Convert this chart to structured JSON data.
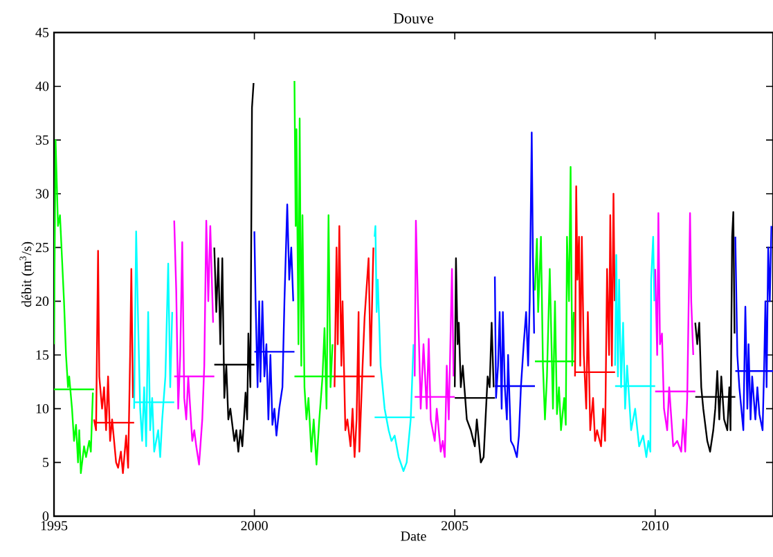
{
  "chart_data": {
    "type": "line",
    "title": "Douve",
    "xlabel": "Date",
    "ylabel": "débit (m$^{3}$/s)",
    "xlim": [
      1995,
      2012.94
    ],
    "ylim": [
      0,
      45
    ],
    "xticks": [
      1995,
      2000,
      2005,
      2010
    ],
    "yticks": [
      0,
      5,
      10,
      15,
      20,
      25,
      30,
      35,
      40,
      45
    ],
    "series": [
      {
        "color": "#00ff00",
        "x": [
          1995.0,
          1995.04,
          1995.1,
          1995.15,
          1995.2,
          1995.25,
          1995.3,
          1995.35,
          1995.38,
          1995.45,
          1995.5,
          1995.55,
          1995.6,
          1995.63,
          1995.67,
          1995.75,
          1995.8,
          1995.88,
          1995.92,
          1995.97
        ],
        "values": [
          16,
          35,
          27,
          28,
          24,
          20,
          15,
          12,
          13,
          10,
          7,
          8.5,
          5,
          8,
          4,
          6.5,
          5.5,
          7,
          6,
          11.5
        ]
      },
      {
        "color": "#00ff00",
        "x": [
          1995,
          1996
        ],
        "values": [
          11.8,
          11.8
        ]
      },
      {
        "color": "#ff0000",
        "x": [
          1996.0,
          1996.05,
          1996.1,
          1996.13,
          1996.2,
          1996.25,
          1996.3,
          1996.35,
          1996.4,
          1996.45,
          1996.55,
          1996.6,
          1996.67,
          1996.72,
          1996.8,
          1996.85,
          1996.9,
          1996.93,
          1996.97
        ],
        "values": [
          9,
          8,
          24.7,
          13,
          10,
          12,
          8,
          13,
          7,
          9,
          5,
          4.5,
          6,
          4,
          7.5,
          4.5,
          15,
          23,
          11
        ]
      },
      {
        "color": "#ff0000",
        "x": [
          1996,
          1997
        ],
        "values": [
          8.7,
          8.7
        ]
      },
      {
        "color": "#00ffff",
        "x": [
          1997.0,
          1997.05,
          1997.1,
          1997.15,
          1997.2,
          1997.25,
          1997.3,
          1997.35,
          1997.4,
          1997.45,
          1997.5,
          1997.6,
          1997.65,
          1997.7,
          1997.78,
          1997.85,
          1997.9,
          1997.95
        ],
        "values": [
          10,
          26.5,
          18,
          10,
          7,
          12,
          6.5,
          19,
          8,
          11,
          6,
          8,
          5.5,
          9,
          13,
          23.5,
          12,
          19
        ]
      },
      {
        "color": "#00ffff",
        "x": [
          1997,
          1998
        ],
        "values": [
          10.6,
          10.6
        ]
      },
      {
        "color": "#ff00ff",
        "x": [
          1998.0,
          1998.05,
          1998.1,
          1998.15,
          1998.2,
          1998.25,
          1998.3,
          1998.35,
          1998.45,
          1998.5,
          1998.55,
          1998.62,
          1998.7,
          1998.75,
          1998.8,
          1998.85,
          1998.9,
          1998.97
        ],
        "values": [
          27.5,
          21,
          10,
          15,
          25.5,
          11,
          9,
          13,
          7,
          8,
          6.5,
          4.8,
          9,
          14,
          27.5,
          20,
          27,
          18
        ]
      },
      {
        "color": "#ff00ff",
        "x": [
          1998,
          1999
        ],
        "values": [
          13.0,
          13.0
        ]
      },
      {
        "color": "#000000",
        "x": [
          1999.0,
          1999.05,
          1999.1,
          1999.15,
          1999.2,
          1999.25,
          1999.3,
          1999.35,
          1999.4,
          1999.5,
          1999.55,
          1999.6,
          1999.65,
          1999.7,
          1999.78,
          1999.82,
          1999.85,
          1999.9,
          1999.94,
          1999.98
        ],
        "values": [
          25,
          19,
          24,
          16,
          24,
          11,
          14,
          9,
          10,
          7,
          8,
          6,
          8,
          6.5,
          11.5,
          9,
          17,
          12,
          38,
          40.3
        ]
      },
      {
        "color": "#000000",
        "x": [
          1999,
          2000
        ],
        "values": [
          14.1,
          14.1
        ]
      },
      {
        "color": "#0000ff",
        "x": [
          2000.0,
          2000.03,
          2000.08,
          2000.12,
          2000.15,
          2000.2,
          2000.25,
          2000.3,
          2000.35,
          2000.4,
          2000.45,
          2000.5,
          2000.55,
          2000.62,
          2000.7,
          2000.75,
          2000.82,
          2000.87,
          2000.92,
          2000.97
        ],
        "values": [
          26.5,
          20,
          12,
          20,
          12.5,
          20,
          13,
          16,
          9,
          15,
          8.5,
          10,
          7.5,
          10,
          12,
          20,
          29,
          22,
          25,
          20
        ]
      },
      {
        "color": "#0000ff",
        "x": [
          2000,
          2001
        ],
        "values": [
          15.3,
          15.3
        ]
      },
      {
        "color": "#00ff00",
        "x": [
          2001.0,
          2001.03,
          2001.05,
          2001.1,
          2001.13,
          2001.17,
          2001.2,
          2001.25,
          2001.3,
          2001.35,
          2001.42,
          2001.48,
          2001.55,
          2001.62,
          2001.7,
          2001.75,
          2001.8,
          2001.85,
          2001.9,
          2001.95
        ],
        "values": [
          40.5,
          27,
          36,
          16,
          37,
          14,
          28,
          12,
          9,
          11,
          6,
          9,
          4.8,
          9,
          13,
          17.5,
          10,
          28,
          12,
          16
        ]
      },
      {
        "color": "#00ff00",
        "x": [
          2001,
          2002
        ],
        "values": [
          13.0,
          13.0
        ]
      },
      {
        "color": "#ff0000",
        "x": [
          2002.0,
          2002.05,
          2002.08,
          2002.12,
          2002.17,
          2002.2,
          2002.27,
          2002.32,
          2002.4,
          2002.45,
          2002.5,
          2002.55,
          2002.6,
          2002.62,
          2002.7,
          2002.75,
          2002.85,
          2002.9,
          2002.97
        ],
        "values": [
          12,
          25,
          16,
          27,
          14,
          20,
          8,
          9,
          6.5,
          10,
          5.5,
          9,
          19,
          6,
          14,
          18.5,
          24,
          14,
          25
        ]
      },
      {
        "color": "#ff0000",
        "x": [
          2002,
          2003
        ],
        "values": [
          13.0,
          13.0
        ]
      },
      {
        "color": "#00ffff",
        "x": [
          2003.0,
          2003.02,
          2003.05,
          2003.08,
          2003.15,
          2003.25,
          2003.35,
          2003.42,
          2003.5,
          2003.6,
          2003.72,
          2003.8,
          2003.85,
          2003.9,
          2003.97
        ],
        "values": [
          26,
          27,
          19,
          22,
          14,
          10,
          8,
          7,
          7.5,
          5.5,
          4.2,
          5,
          7,
          9,
          16
        ]
      },
      {
        "color": "#00ffff",
        "x": [
          2003,
          2004
        ],
        "values": [
          9.2,
          9.2
        ]
      },
      {
        "color": "#ff00ff",
        "x": [
          2004.0,
          2004.03,
          2004.08,
          2004.15,
          2004.22,
          2004.3,
          2004.35,
          2004.4,
          2004.5,
          2004.55,
          2004.65,
          2004.7,
          2004.75,
          2004.8,
          2004.85,
          2004.93,
          2004.97
        ],
        "values": [
          13,
          27.5,
          20,
          10,
          16,
          10,
          16.5,
          9,
          7,
          10,
          6,
          7,
          5.5,
          14,
          9,
          23,
          13
        ]
      },
      {
        "color": "#ff00ff",
        "x": [
          2004,
          2005
        ],
        "values": [
          11.1,
          11.1
        ]
      },
      {
        "color": "#000000",
        "x": [
          2005.0,
          2005.03,
          2005.07,
          2005.1,
          2005.15,
          2005.2,
          2005.3,
          2005.4,
          2005.5,
          2005.55,
          2005.65,
          2005.72,
          2005.78,
          2005.82,
          2005.87,
          2005.92,
          2005.97
        ],
        "values": [
          12,
          24,
          16,
          18,
          12,
          14,
          9,
          8,
          6.5,
          9,
          5,
          5.5,
          10,
          13,
          12,
          18,
          12
        ]
      },
      {
        "color": "#000000",
        "x": [
          2005,
          2006
        ],
        "values": [
          11.0,
          11.0
        ]
      },
      {
        "color": "#0000ff",
        "x": [
          2006.0,
          2006.03,
          2006.08,
          2006.12,
          2006.17,
          2006.2,
          2006.25,
          2006.3,
          2006.33,
          2006.4,
          2006.47,
          2006.55,
          2006.6,
          2006.65,
          2006.72,
          2006.78,
          2006.83,
          2006.87,
          2006.92,
          2006.95,
          2006.98
        ],
        "values": [
          22.3,
          11,
          14,
          19,
          10,
          19,
          12,
          9,
          15,
          7,
          6.5,
          5.5,
          7.5,
          12,
          16,
          19,
          14,
          20,
          35.7,
          24,
          17
        ]
      },
      {
        "color": "#0000ff",
        "x": [
          2006,
          2007
        ],
        "values": [
          12.1,
          12.1
        ]
      },
      {
        "color": "#00ff00",
        "x": [
          2007.0,
          2007.05,
          2007.08,
          2007.15,
          2007.2,
          2007.25,
          2007.3,
          2007.37,
          2007.45,
          2007.5,
          2007.55,
          2007.6,
          2007.65,
          2007.73,
          2007.77,
          2007.8,
          2007.85,
          2007.89,
          2007.93,
          2007.97
        ],
        "values": [
          21,
          25.8,
          19,
          26,
          14,
          9,
          13,
          23,
          10,
          20,
          9.5,
          12,
          8,
          11,
          8.5,
          26,
          20,
          32.5,
          14,
          19
        ]
      },
      {
        "color": "#00ff00",
        "x": [
          2007,
          2008
        ],
        "values": [
          14.4,
          14.4
        ]
      },
      {
        "color": "#ff0000",
        "x": [
          2008.0,
          2008.03,
          2008.06,
          2008.1,
          2008.13,
          2008.17,
          2008.22,
          2008.28,
          2008.32,
          2008.38,
          2008.45,
          2008.5,
          2008.55,
          2008.65,
          2008.7,
          2008.75,
          2008.8,
          2008.85,
          2008.88,
          2008.92,
          2008.96,
          2008.99
        ],
        "values": [
          13,
          30.7,
          22,
          26,
          14,
          26,
          15,
          10,
          19,
          8,
          11,
          7,
          8,
          6.5,
          10,
          7,
          23,
          15,
          28,
          14,
          30,
          20
        ]
      },
      {
        "color": "#ff0000",
        "x": [
          2008,
          2009
        ],
        "values": [
          13.4,
          13.4
        ]
      },
      {
        "color": "#00ffff",
        "x": [
          2009.0,
          2009.03,
          2009.07,
          2009.1,
          2009.15,
          2009.2,
          2009.25,
          2009.3,
          2009.4,
          2009.5,
          2009.6,
          2009.7,
          2009.78,
          2009.83,
          2009.88,
          2009.9,
          2009.95,
          2009.98
        ],
        "values": [
          14,
          24.3,
          13,
          22,
          12,
          18,
          10,
          14,
          8,
          10,
          6.5,
          7.5,
          5.5,
          7,
          6,
          22,
          26,
          20
        ]
      },
      {
        "color": "#00ffff",
        "x": [
          2009,
          2010
        ],
        "values": [
          12.1,
          12.1
        ]
      },
      {
        "color": "#ff00ff",
        "x": [
          2010.0,
          2010.05,
          2010.08,
          2010.12,
          2010.17,
          2010.22,
          2010.3,
          2010.35,
          2010.45,
          2010.55,
          2010.65,
          2010.7,
          2010.75,
          2010.8,
          2010.87,
          2010.9,
          2010.95
        ],
        "values": [
          23,
          15,
          28.2,
          16,
          17,
          10,
          8,
          12,
          6.5,
          7,
          6,
          9,
          6,
          11,
          28.2,
          20,
          15
        ]
      },
      {
        "color": "#ff00ff",
        "x": [
          2010,
          2011
        ],
        "values": [
          11.6,
          11.6
        ]
      },
      {
        "color": "#000000",
        "x": [
          2011.0,
          2011.05,
          2011.1,
          2011.15,
          2011.2,
          2011.3,
          2011.37,
          2011.45,
          2011.5,
          2011.55,
          2011.6,
          2011.65,
          2011.72,
          2011.8,
          2011.85,
          2011.88,
          2011.92,
          2011.95,
          2011.98
        ],
        "values": [
          18,
          16,
          18,
          12,
          10,
          7,
          6,
          8,
          10,
          13.5,
          9,
          13,
          9,
          8,
          12,
          8,
          26,
          28.3,
          17
        ]
      },
      {
        "color": "#000000",
        "x": [
          2011,
          2012
        ],
        "values": [
          11.1,
          11.1
        ]
      },
      {
        "color": "#0000ff",
        "x": [
          2012.0,
          2012.05,
          2012.1,
          2012.15,
          2012.2,
          2012.25,
          2012.3,
          2012.33,
          2012.38,
          2012.42,
          2012.5,
          2012.55,
          2012.6,
          2012.68,
          2012.72,
          2012.75,
          2012.78,
          2012.82,
          2012.86,
          2012.9
        ],
        "values": [
          26,
          15,
          12,
          10,
          8,
          19.5,
          10,
          16,
          9,
          13,
          9,
          12,
          9.5,
          8,
          14,
          20,
          12,
          25,
          20,
          27
        ]
      },
      {
        "color": "#0000ff",
        "x": [
          2012,
          2012.94
        ],
        "values": [
          13.5,
          13.5
        ]
      }
    ]
  }
}
